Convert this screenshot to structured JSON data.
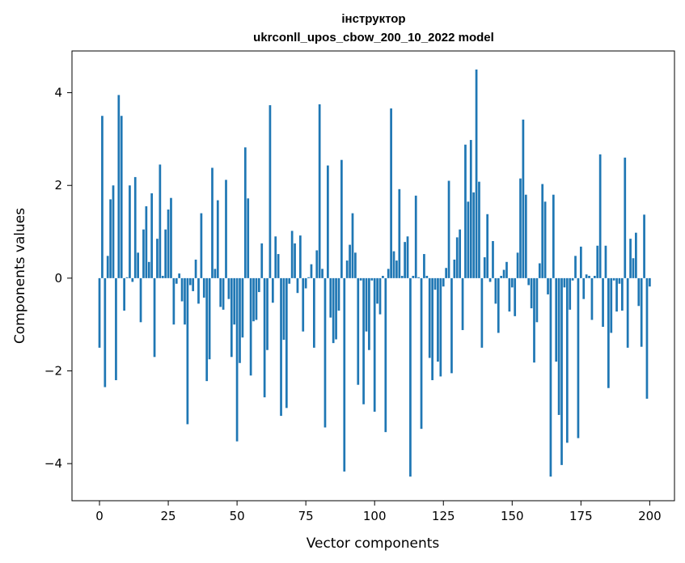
{
  "chart_data": {
    "type": "bar",
    "title_line1": "інструктор",
    "title_line2": "ukrconll_upos_cbow_200_10_2022 model",
    "xlabel": "Vector components",
    "ylabel": "Components values",
    "xlim": [
      -10,
      209
    ],
    "ylim": [
      -4.8,
      4.9
    ],
    "xticks": [
      0,
      25,
      50,
      75,
      100,
      125,
      150,
      175,
      200
    ],
    "yticks": [
      -4,
      -2,
      0,
      2,
      4
    ],
    "ytick_labels": [
      "−4",
      "−2",
      "0",
      "2",
      "4"
    ],
    "bar_color": "#1f77b4",
    "grid": false,
    "values": [
      -1.5,
      3.5,
      -2.35,
      0.48,
      1.7,
      2.0,
      -2.2,
      3.95,
      3.5,
      -0.7,
      0.02,
      2.0,
      -0.08,
      2.18,
      0.55,
      -0.95,
      1.05,
      1.55,
      0.35,
      1.83,
      -1.7,
      0.85,
      2.45,
      0.05,
      1.05,
      1.48,
      1.73,
      -1.0,
      -0.12,
      0.1,
      -0.5,
      -1.0,
      -3.15,
      -0.15,
      -0.28,
      0.4,
      -0.55,
      1.4,
      -0.42,
      -2.22,
      -1.75,
      2.38,
      0.2,
      1.68,
      -0.62,
      -0.68,
      2.12,
      -0.45,
      -1.7,
      -1.0,
      -3.52,
      -1.83,
      -1.28,
      2.82,
      1.72,
      -2.1,
      -0.93,
      -0.9,
      -0.3,
      0.75,
      -2.57,
      -1.55,
      3.73,
      -0.53,
      0.9,
      0.52,
      -2.97,
      -1.33,
      -2.8,
      -0.12,
      1.02,
      0.75,
      -0.32,
      0.92,
      -1.15,
      -0.22,
      0.02,
      0.3,
      -1.5,
      0.6,
      3.75,
      0.2,
      -3.22,
      2.43,
      -0.85,
      -1.4,
      -1.32,
      -0.7,
      2.55,
      -4.17,
      0.38,
      0.72,
      1.4,
      0.55,
      -2.3,
      -0.05,
      -2.72,
      -1.15,
      -1.55,
      -0.05,
      -2.88,
      -0.55,
      -0.78,
      0.05,
      -3.32,
      0.2,
      3.66,
      0.58,
      0.38,
      1.92,
      0.05,
      0.78,
      0.9,
      -4.28,
      0.05,
      1.78,
      0.02,
      -3.25,
      0.52,
      0.05,
      -1.72,
      -2.2,
      -0.25,
      -1.8,
      -2.12,
      -0.18,
      0.22,
      2.1,
      -2.05,
      0.4,
      0.88,
      1.05,
      -1.12,
      2.88,
      1.65,
      2.98,
      1.85,
      4.5,
      2.08,
      -1.5,
      0.45,
      1.38,
      -0.08,
      0.8,
      -0.55,
      -1.18,
      0.05,
      0.18,
      0.35,
      -0.72,
      -0.2,
      -0.82,
      0.55,
      2.15,
      3.42,
      1.8,
      -0.15,
      -0.65,
      -1.82,
      -0.95,
      0.32,
      2.03,
      1.65,
      -0.35,
      -4.28,
      1.8,
      -1.8,
      -2.95,
      -4.03,
      -0.2,
      -3.55,
      -0.68,
      -0.05,
      0.48,
      -3.45,
      0.68,
      -0.45,
      0.08,
      0.05,
      -0.9,
      0.05,
      0.7,
      2.67,
      -1.05,
      0.7,
      -2.37,
      -1.18,
      -0.05,
      -0.72,
      -0.12,
      -0.7,
      2.6,
      -1.5,
      0.85,
      0.43,
      0.98,
      -0.6,
      -1.48,
      1.37,
      -2.6,
      -0.18
    ]
  }
}
